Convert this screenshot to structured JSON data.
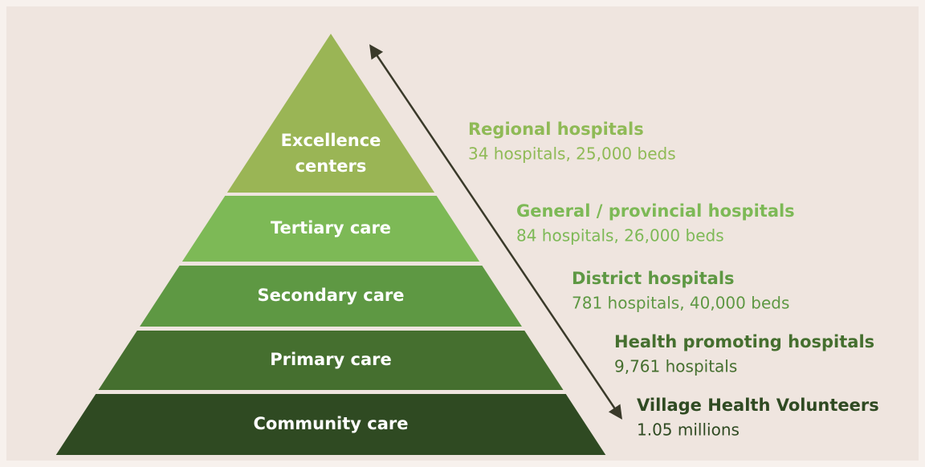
{
  "levels": [
    {
      "label_lines": [
        "Excellence",
        "centers"
      ],
      "name": "Regional hospitals",
      "detail": "34 hospitals, 25,000 beds"
    },
    {
      "label_lines": [
        "Tertiary care"
      ],
      "name": "General / provincial hospitals",
      "detail": "84 hospitals, 26,000 beds"
    },
    {
      "label_lines": [
        "Secondary care"
      ],
      "name": "District hospitals",
      "detail": "781 hospitals, 40,000 beds"
    },
    {
      "label_lines": [
        "Primary care"
      ],
      "name": "Health promoting hospitals",
      "detail": "9,761 hospitals"
    },
    {
      "label_lines": [
        "Community care"
      ],
      "name": "Village Health Volunteers",
      "detail": "1.05 millions"
    }
  ]
}
